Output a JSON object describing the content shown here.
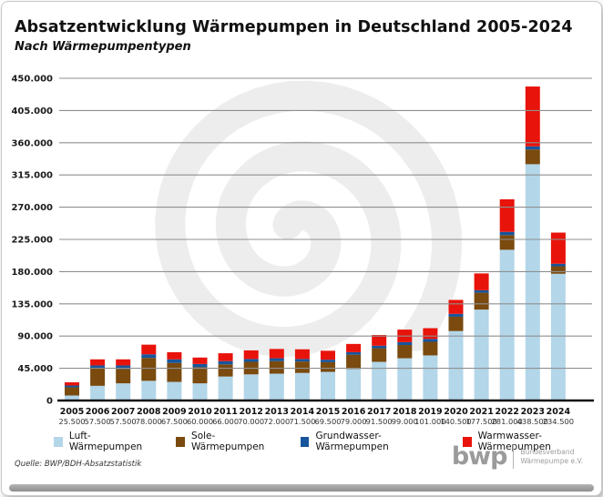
{
  "header": {
    "title": "Absatzentwicklung Wärmepumpen in Deutschland 2005-2024",
    "subtitle": "Nach Wärmepumpentypen"
  },
  "chart_data": {
    "type": "bar",
    "stacked": true,
    "title": "Absatzentwicklung Wärmepumpen in Deutschland 2005-2024",
    "subtitle": "Nach Wärmepumpentypen",
    "categories": [
      "2005",
      "2006",
      "2007",
      "2008",
      "2009",
      "2010",
      "2011",
      "2012",
      "2013",
      "2014",
      "2015",
      "2016",
      "2017",
      "2018",
      "2019",
      "2020",
      "2021",
      "2022",
      "2023",
      "2024"
    ],
    "totals_labels": [
      "25.500",
      "57.500",
      "57.500",
      "78.000",
      "67.500",
      "60.000",
      "66.000",
      "70.000",
      "72.000",
      "71.500",
      "69.500",
      "79.000",
      "91.500",
      "99.000",
      "101.000",
      "140.500",
      "177.500",
      "281.000",
      "438.500",
      "234.500"
    ],
    "totals": [
      25500,
      57500,
      57500,
      78000,
      67500,
      60000,
      66000,
      70000,
      72000,
      71500,
      69500,
      79000,
      91500,
      99000,
      101000,
      140500,
      177500,
      281000,
      438500,
      234500
    ],
    "series": [
      {
        "name": "Luft-Wärmepumpen",
        "color": "#b3d6e9",
        "values": [
          7000,
          20500,
          24000,
          27500,
          26000,
          24000,
          33500,
          36500,
          37500,
          38500,
          40000,
          44000,
          54000,
          59000,
          63000,
          97000,
          127000,
          210500,
          330000,
          177000
        ]
      },
      {
        "name": "Sole-Wärmepumpen",
        "color": "#7a4a0e",
        "values": [
          11500,
          24500,
          20000,
          32000,
          26500,
          22500,
          17000,
          17500,
          17500,
          16000,
          13500,
          20000,
          19000,
          18500,
          19000,
          20000,
          23500,
          20500,
          20500,
          10500
        ]
      },
      {
        "name": "Grundwasser-Wärmepumpen",
        "color": "#17559c",
        "values": [
          2500,
          4000,
          5000,
          5000,
          5000,
          4500,
          4500,
          4000,
          4000,
          3500,
          3500,
          3500,
          3500,
          4000,
          4000,
          4000,
          3500,
          4500,
          4500,
          3500
        ]
      },
      {
        "name": "Warmwasser-Wärmepumpen",
        "color": "#e8130b",
        "values": [
          4500,
          8500,
          8500,
          13500,
          10000,
          9000,
          11000,
          12000,
          13000,
          13500,
          12500,
          11500,
          15000,
          17500,
          15000,
          19500,
          23500,
          45500,
          83500,
          43500
        ]
      }
    ],
    "xlabel": "",
    "ylabel": "",
    "ylim": [
      0,
      450000
    ],
    "ytick_step": 45000,
    "ytick_labels": [
      "0",
      "45.000",
      "90.000",
      "135.000",
      "180.000",
      "225.000",
      "270.000",
      "315.000",
      "360.000",
      "405.000",
      "450.000"
    ],
    "grid": true,
    "gridlines_over_bars": true,
    "legend_position": "bottom",
    "colors": {
      "grid": "#8f8f8f",
      "axis": "#1a1a1a",
      "tick_text": "#1a1a1a",
      "total_text": "#333333",
      "watermark": "#ededed"
    }
  },
  "footer": {
    "source": "Quelle: BWP/BDH-Absatzstatistik",
    "logo_text": "bwp",
    "logo_caption_line1": "Bundesverband",
    "logo_caption_line2": "Wärmepumpe e.V."
  }
}
